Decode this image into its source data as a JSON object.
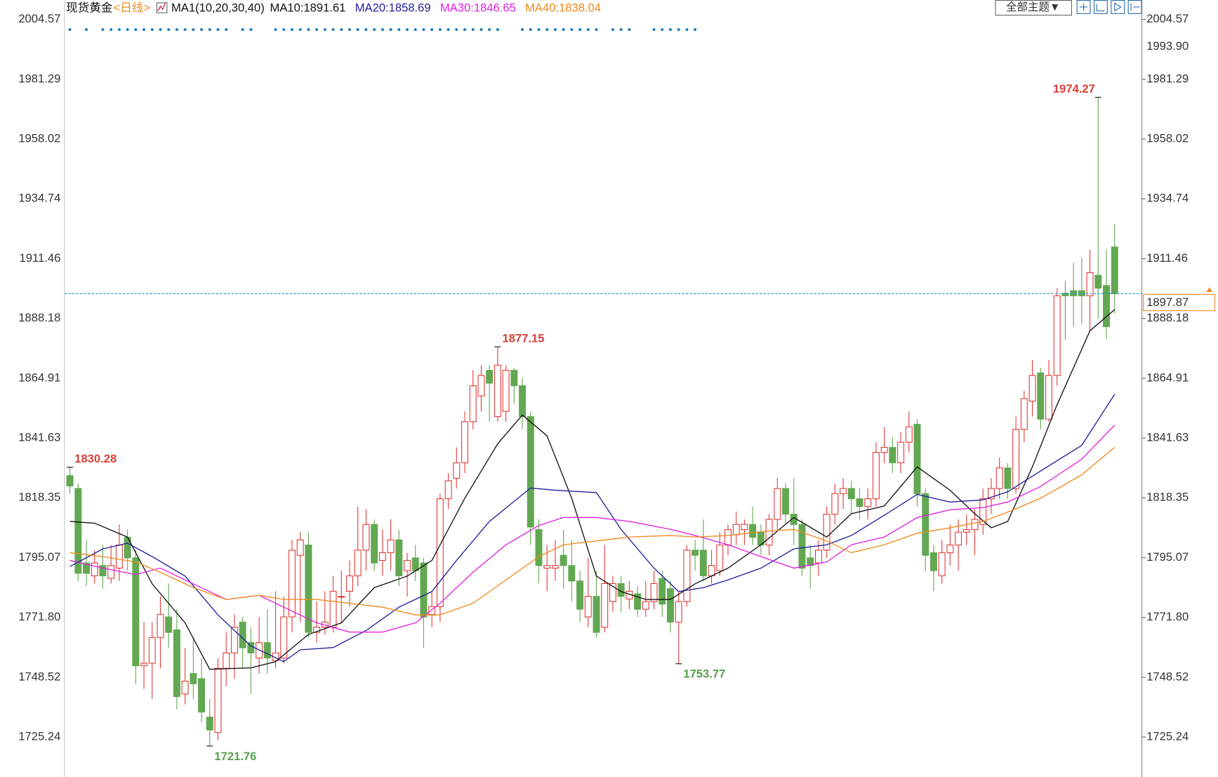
{
  "chart_data": {
    "type": "candlestick",
    "title": "现货黄金",
    "period": "<日线>",
    "indicator": "MA1(10,20,30,40)",
    "theme_button": "全部主题▼",
    "up_color": "#e03c3c",
    "down_color": "#62a852",
    "open": [
      1827,
      1822,
      1793,
      1788,
      1792,
      1787,
      1791,
      1803,
      1795,
      1753,
      1754,
      1764,
      1772,
      1767,
      1742,
      1750,
      1748,
      1733,
      1727,
      1752,
      1758,
      1770,
      1762,
      1756,
      1762,
      1755,
      1756,
      1772,
      1796,
      1800,
      1766,
      1768,
      1768,
      1780,
      1782,
      1788,
      1798,
      1808,
      1794,
      1797,
      1802,
      1790,
      1795,
      1793,
      1773,
      1776,
      1818,
      1826,
      1832,
      1848,
      1858,
      1868,
      1850,
      1852,
      1868,
      1862,
      1850,
      1806,
      1791,
      1791,
      1796,
      1792,
      1786,
      1772,
      1780,
      1768,
      1778,
      1785,
      1779,
      1781,
      1775,
      1778,
      1787,
      1783,
      1770,
      1778,
      1798,
      1798,
      1788,
      1790,
      1800,
      1804,
      1806,
      1808,
      1805,
      1800,
      1810,
      1822,
      1812,
      1808,
      1795,
      1793,
      1798,
      1812,
      1820,
      1822,
      1818,
      1815,
      1818,
      1836,
      1838,
      1832,
      1840,
      1847,
      1820,
      1797,
      1788,
      1797,
      1800,
      1805,
      1806,
      1808,
      1818,
      1822,
      1830,
      1822,
      1845,
      1856,
      1867,
      1849,
      1866,
      1898,
      1899,
      1899,
      1897,
      1905,
      1901,
      1916
    ],
    "high": [
      1830.28,
      1824,
      1802,
      1798,
      1800,
      1800,
      1808,
      1806,
      1798,
      1770,
      1770,
      1780,
      1785,
      1775,
      1760,
      1764,
      1756,
      1740,
      1756,
      1766,
      1773,
      1772,
      1768,
      1772,
      1775,
      1782,
      1780,
      1802,
      1805,
      1805,
      1778,
      1782,
      1788,
      1790,
      1794,
      1815,
      1814,
      1810,
      1806,
      1810,
      1806,
      1797,
      1800,
      1795,
      1782,
      1820,
      1828,
      1838,
      1852,
      1868,
      1870,
      1870,
      1877.15,
      1870,
      1869,
      1865,
      1852,
      1810,
      1800,
      1802,
      1806,
      1802,
      1790,
      1795,
      1790,
      1800,
      1788,
      1788,
      1786,
      1784,
      1786,
      1790,
      1790,
      1786,
      1782,
      1800,
      1802,
      1810,
      1798,
      1805,
      1808,
      1813,
      1810,
      1815,
      1808,
      1812,
      1826,
      1824,
      1826,
      1810,
      1800,
      1802,
      1815,
      1824,
      1826,
      1825,
      1822,
      1822,
      1840,
      1846,
      1842,
      1844,
      1852,
      1849,
      1822,
      1800,
      1802,
      1808,
      1810,
      1812,
      1814,
      1822,
      1826,
      1834,
      1832,
      1850,
      1860,
      1872,
      1869,
      1872,
      1900,
      1903,
      1910,
      1912,
      1915,
      1974.27,
      1915,
      1925
    ],
    "low": [
      1820,
      1786,
      1784,
      1785,
      1783,
      1785,
      1786,
      1790,
      1746,
      1744,
      1740,
      1752,
      1760,
      1736,
      1738,
      1740,
      1731,
      1721.76,
      1724,
      1745,
      1748,
      1752,
      1742,
      1750,
      1750,
      1752,
      1754,
      1766,
      1770,
      1764,
      1762,
      1765,
      1766,
      1770,
      1776,
      1784,
      1790,
      1790,
      1788,
      1790,
      1784,
      1780,
      1786,
      1760,
      1768,
      1770,
      1814,
      1822,
      1828,
      1845,
      1852,
      1848,
      1848,
      1848,
      1855,
      1845,
      1800,
      1785,
      1782,
      1786,
      1783,
      1778,
      1770,
      1768,
      1764,
      1766,
      1774,
      1774,
      1775,
      1772,
      1772,
      1775,
      1772,
      1766,
      1753.77,
      1776,
      1790,
      1786,
      1785,
      1788,
      1796,
      1800,
      1800,
      1800,
      1796,
      1796,
      1806,
      1808,
      1800,
      1788,
      1783,
      1788,
      1795,
      1808,
      1814,
      1812,
      1810,
      1810,
      1815,
      1832,
      1828,
      1828,
      1836,
      1815,
      1790,
      1782,
      1785,
      1792,
      1790,
      1800,
      1796,
      1804,
      1812,
      1818,
      1818,
      1820,
      1840,
      1850,
      1845,
      1848,
      1862,
      1880,
      1885,
      1886,
      1883,
      1888,
      1880,
      1890
    ],
    "close": [
      1823,
      1789,
      1789,
      1793,
      1788,
      1792,
      1800,
      1795,
      1753,
      1754,
      1764,
      1773,
      1766,
      1741,
      1747,
      1746,
      1735,
      1728,
      1752,
      1758,
      1768,
      1760,
      1758,
      1762,
      1756,
      1758,
      1772,
      1798,
      1802,
      1766,
      1768,
      1770,
      1782,
      1780,
      1788,
      1798,
      1808,
      1793,
      1797,
      1802,
      1788,
      1794,
      1790,
      1772,
      1776,
      1818,
      1825,
      1832,
      1848,
      1862,
      1866,
      1863,
      1870,
      1868,
      1862,
      1850,
      1807,
      1792,
      1792,
      1792,
      1792,
      1786,
      1775,
      1780,
      1766,
      1785,
      1785,
      1780,
      1782,
      1775,
      1778,
      1785,
      1777,
      1770,
      1778,
      1798,
      1796,
      1788,
      1792,
      1800,
      1806,
      1808,
      1808,
      1803,
      1800,
      1810,
      1822,
      1812,
      1808,
      1791,
      1792,
      1798,
      1812,
      1820,
      1822,
      1818,
      1815,
      1818,
      1836,
      1838,
      1832,
      1840,
      1846,
      1820,
      1796,
      1790,
      1797,
      1800,
      1805,
      1806,
      1810,
      1818,
      1822,
      1830,
      1822,
      1845,
      1857,
      1866,
      1849,
      1866,
      1897,
      1897,
      1897,
      1897,
      1906,
      1900,
      1885,
      1897.87
    ],
    "series": [
      {
        "name": "MA10:1891.61",
        "color": "#111111",
        "x": [
          0,
          3,
          7,
          10,
          14,
          17,
          22,
          25,
          29,
          33,
          37,
          41,
          44,
          48,
          52,
          55,
          58,
          61,
          64,
          67,
          70,
          73,
          76,
          80,
          84,
          88,
          92,
          95,
          99,
          103,
          107,
          110,
          112,
          114,
          117,
          120,
          124,
          127
        ],
        "values": [
          1809.2,
          1808.5,
          1803.1,
          1784.9,
          1769.7,
          1751.6,
          1752.2,
          1754.6,
          1765.2,
          1769.7,
          1783.4,
          1787.9,
          1794.0,
          1818.2,
          1839.4,
          1850.6,
          1842.5,
          1818.2,
          1787.9,
          1781.9,
          1778.8,
          1778.8,
          1784.9,
          1791.0,
          1800.1,
          1810.7,
          1803.1,
          1812.2,
          1815.2,
          1830.4,
          1821.3,
          1812.2,
          1806.7,
          1809.2,
          1830.4,
          1854.6,
          1883.4,
          1891.61
        ]
      },
      {
        "name": "MA20:1858.69",
        "color": "#1f1f9e",
        "x": [
          0,
          4,
          7,
          10,
          14,
          18,
          22,
          26,
          28,
          32,
          36,
          40,
          44,
          47,
          51,
          56,
          59,
          64,
          67,
          71,
          74,
          77,
          80,
          84,
          88,
          92,
          95,
          99,
          103,
          107,
          111,
          114,
          118,
          123,
          127
        ],
        "values": [
          1791.6,
          1798.5,
          1800.7,
          1795.5,
          1787.9,
          1772.8,
          1760.7,
          1754.6,
          1759.2,
          1760.1,
          1766.7,
          1775.8,
          1781.9,
          1794.0,
          1809.2,
          1822.2,
          1821.3,
          1820.4,
          1806.1,
          1791.0,
          1781.9,
          1783.4,
          1786.4,
          1791.0,
          1798.5,
          1800.1,
          1803.7,
          1811.6,
          1819.7,
          1816.7,
          1817.6,
          1820.7,
          1828.8,
          1838.8,
          1858.69
        ]
      },
      {
        "name": "MA30:1846.65",
        "color": "#e020e0",
        "x": [
          0,
          4,
          8,
          11,
          15,
          19,
          23,
          26,
          30,
          34,
          38,
          42,
          45,
          49,
          53,
          57,
          60,
          64,
          68,
          73,
          76,
          80,
          84,
          88,
          92,
          95,
          99,
          103,
          107,
          111,
          114,
          118,
          123,
          127
        ],
        "values": [
          1794.0,
          1791.0,
          1788.5,
          1791.0,
          1784.9,
          1778.8,
          1780.4,
          1775.8,
          1769.7,
          1766.1,
          1766.1,
          1769.7,
          1777.3,
          1789.4,
          1800.1,
          1807.6,
          1810.7,
          1810.7,
          1809.2,
          1806.1,
          1803.7,
          1800.1,
          1795.5,
          1791.0,
          1793.4,
          1800.1,
          1803.1,
          1810.7,
          1813.7,
          1814.6,
          1816.7,
          1822.8,
          1833.4,
          1846.65
        ]
      },
      {
        "name": "MA40:1838.04",
        "color": "#f08a1c",
        "x": [
          0,
          4,
          8,
          11,
          15,
          19,
          23,
          26,
          30,
          34,
          38,
          42,
          45,
          49,
          53,
          57,
          60,
          64,
          68,
          73,
          76,
          80,
          84,
          88,
          92,
          95,
          99,
          103,
          107,
          111,
          114,
          118,
          123,
          127
        ],
        "values": [
          1797.0,
          1795.5,
          1793.4,
          1789.4,
          1783.4,
          1778.8,
          1780.4,
          1778.8,
          1778.8,
          1777.3,
          1775.8,
          1772.8,
          1772.8,
          1777.3,
          1786.4,
          1795.5,
          1800.1,
          1801.6,
          1803.1,
          1803.7,
          1803.1,
          1803.7,
          1805.2,
          1806.1,
          1801.6,
          1797.0,
          1800.1,
          1804.6,
          1806.7,
          1809.2,
          1812.8,
          1818.2,
          1827.3,
          1838.04
        ]
      }
    ],
    "annotations": [
      {
        "x": 0,
        "value": 1830.28,
        "color": "#d9413a"
      },
      {
        "x": 17,
        "value": 1721.76,
        "color": "#5aa050"
      },
      {
        "x": 52,
        "value": 1877.15,
        "color": "#d9413a"
      },
      {
        "x": 74,
        "value": 1753.77,
        "color": "#5aa050"
      },
      {
        "x": 125,
        "value": 1974.27,
        "color": "#d9413a"
      }
    ],
    "marker_level": {
      "value": 1993.9,
      "label": "1993.90"
    },
    "marker_color": "#f08a1c",
    "price_line_color": "#1a8fd0",
    "ylim": [
      1709.7,
      2004.57
    ],
    "yticks": [
      2004.57,
      1981.29,
      1958.02,
      1934.74,
      1911.46,
      1888.18,
      1864.91,
      1841.63,
      1818.35,
      1795.07,
      {
        "value": 1771.8,
        "label": "1771.80"
      },
      1748.52,
      1725.24
    ]
  }
}
